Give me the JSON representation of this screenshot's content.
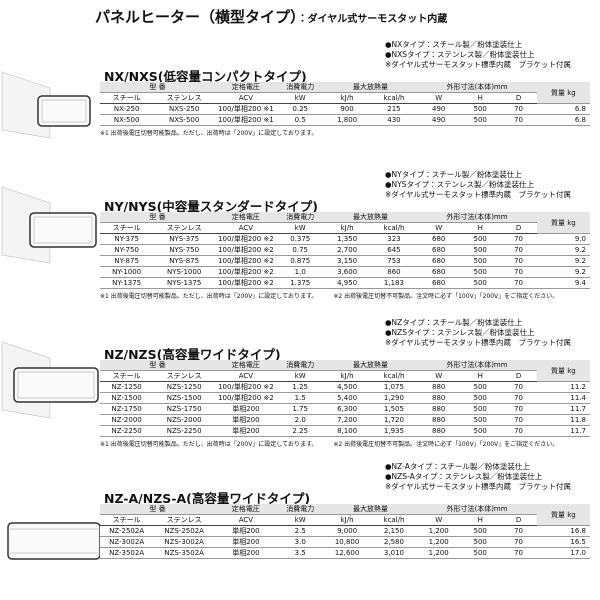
{
  "header": {
    "title": "パネルヒーター（横型タイプ）",
    "subtitle": "：ダイヤル式サーモスタット内蔵"
  },
  "sections": [
    {
      "title": "NX/NXS(低容量コンパクトタイプ)",
      "notes": [
        "●NXタイプ：スチール製／粉体塗装仕上",
        "●NXSタイプ：ステンレス製／粉体塗装仕上",
        "※ダイヤル式サーモスタット標準内蔵　ブラケット付属"
      ],
      "header": {
        "model": "型 番",
        "voltage": "定格電圧",
        "power": "消費電力",
        "heat": "最大放熱量",
        "dims": "外形寸法(本体)mm",
        "mass": "質量 kg",
        "steel": "スチール",
        "stainless": "ステンレス",
        "acv": "ACV",
        "kw": "kW",
        "kjh": "kJ/h",
        "kcalh": "kcal/h",
        "w": "W",
        "h": "H",
        "d": "D"
      },
      "rows": [
        [
          "NX-250",
          "NXS-250",
          "100/単相200 ※1",
          "0.25",
          "900",
          "215",
          "490",
          "500",
          "70",
          "6.8"
        ],
        [
          "NX-500",
          "NXS-500",
          "100/単相200 ※1",
          "0.5",
          "1,800",
          "430",
          "490",
          "500",
          "70",
          "6.8"
        ]
      ],
      "footnotes": [
        "※1 出荷後電圧切替可能製品。ただし、出荷時は「200V」に設定しております。"
      ]
    },
    {
      "title": "NY/NYS(中容量スタンダードタイプ)",
      "notes": [
        "●NYタイプ：スチール製／粉体塗装仕上",
        "●NYSタイプ：ステンレス製／粉体塗装仕上",
        "※ダイヤル式サーモスタット標準内蔵　ブラケット付属"
      ],
      "header": {
        "model": "型 番",
        "voltage": "定格電圧",
        "power": "消費電力",
        "heat": "最大放熱量",
        "dims": "外形寸法(本体)mm",
        "mass": "質量 kg",
        "steel": "スチール",
        "stainless": "ステンレス",
        "acv": "ACV",
        "kw": "kW",
        "kjh": "kJ/h",
        "kcalh": "kcal/h",
        "w": "W",
        "h": "H",
        "d": "D"
      },
      "rows": [
        [
          "NY-375",
          "NYS-375",
          "100/単相200 ※2",
          "0.375",
          "1,350",
          "323",
          "680",
          "500",
          "70",
          "9.0"
        ],
        [
          "NY-750",
          "NYS-750",
          "100/単相200 ※2",
          "0.75",
          "2,700",
          "645",
          "680",
          "500",
          "70",
          "9.2"
        ],
        [
          "NY-875",
          "NYS-875",
          "100/単相200 ※2",
          "0.875",
          "3,150",
          "753",
          "680",
          "500",
          "70",
          "9.2"
        ],
        [
          "NY-1000",
          "NYS-1000",
          "100/単相200 ※2",
          "1.0",
          "3,600",
          "860",
          "680",
          "500",
          "70",
          "9.2"
        ],
        [
          "NY-1375",
          "NYS-1375",
          "100/単相200 ※2",
          "1.375",
          "4,950",
          "1,183",
          "680",
          "500",
          "70",
          "9.4"
        ]
      ],
      "footnotes": [
        "※1 出荷後電圧切替可能製品。ただし、出荷時は「200V」に設定しております。",
        "※2 出荷後電圧切替不可製品。注文時に必ず「100V」「200V」をご指定ください。"
      ]
    },
    {
      "title": "NZ/NZS(高容量ワイドタイプ)",
      "notes": [
        "●NZタイプ：スチール製／粉体塗装仕上",
        "●NZSタイプ：ステンレス製／粉体塗装仕上",
        "※ダイヤル式サーモスタット標準内蔵　ブラケット付属"
      ],
      "header": {
        "model": "型 番",
        "voltage": "定格電圧",
        "power": "消費電力",
        "heat": "最大放熱量",
        "dims": "外形寸法(本体)mm",
        "mass": "質量 kg",
        "steel": "スチール",
        "stainless": "ステンレス",
        "acv": "ACV",
        "kw": "kW",
        "kjh": "kJ/h",
        "kcalh": "kcal/h",
        "w": "W",
        "h": "H",
        "d": "D"
      },
      "rows": [
        [
          "NZ-1250",
          "NZS-1250",
          "100/単相200 ※2",
          "1.25",
          "4,500",
          "1,075",
          "880",
          "500",
          "70",
          "11.2"
        ],
        [
          "NZ-1500",
          "NZS-1500",
          "100/単相200 ※2",
          "1.5",
          "5,400",
          "1,290",
          "880",
          "500",
          "70",
          "11.4"
        ],
        [
          "NZ-1750",
          "NZS-1750",
          "単相200",
          "1.75",
          "6,300",
          "1,505",
          "880",
          "500",
          "70",
          "11.7"
        ],
        [
          "NZ-2000",
          "NZS-2000",
          "単相200",
          "2.0",
          "7,200",
          "1,720",
          "880",
          "500",
          "70",
          "11.8"
        ],
        [
          "NZ-2250",
          "NZS-2250",
          "単相200",
          "2.25",
          "8,100",
          "1,935",
          "880",
          "500",
          "70",
          "11.7"
        ]
      ],
      "footnotes": [
        "※1 出荷後電圧切替可能製品。ただし、出荷時は「200V」に設定しております。",
        "※2 出荷後電圧切替不可製品。注文時に必ず「100V」「200V」をご指定ください。"
      ]
    },
    {
      "title": "NZ-A/NZS-A(高容量ワイドタイプ)",
      "notes": [
        "●NZ-Aタイプ：スチール製／粉体塗装仕上",
        "●NZS-Aタイプ：ステンレス製／粉体塗装仕上",
        "※ダイヤル式サーモスタット標準内蔵　ブラケット付属"
      ],
      "header": {
        "model": "型 番",
        "voltage": "定格電圧",
        "power": "消費電力",
        "heat": "最大放熱量",
        "dims": "外形寸法(本体)mm",
        "mass": "質量 kg",
        "steel": "スチール",
        "stainless": "ステンレス",
        "acv": "ACV",
        "kw": "kW",
        "kjh": "kJ/h",
        "kcalh": "kcal/h",
        "w": "W",
        "h": "H",
        "d": "D"
      },
      "rows": [
        [
          "NZ-2502A",
          "NZS-2502A",
          "単相200",
          "2.5",
          "9,000",
          "2,150",
          "1,200",
          "500",
          "70",
          "16.8"
        ],
        [
          "NZ-3002A",
          "NZS-3002A",
          "単相200",
          "3.0",
          "10,800",
          "2,580",
          "1,200",
          "500",
          "70",
          "16.5"
        ],
        [
          "NZ-3502A",
          "NZS-3502A",
          "単相200",
          "3.5",
          "12,600",
          "3,010",
          "1,200",
          "500",
          "70",
          "17.0"
        ]
      ],
      "footnotes": []
    }
  ]
}
